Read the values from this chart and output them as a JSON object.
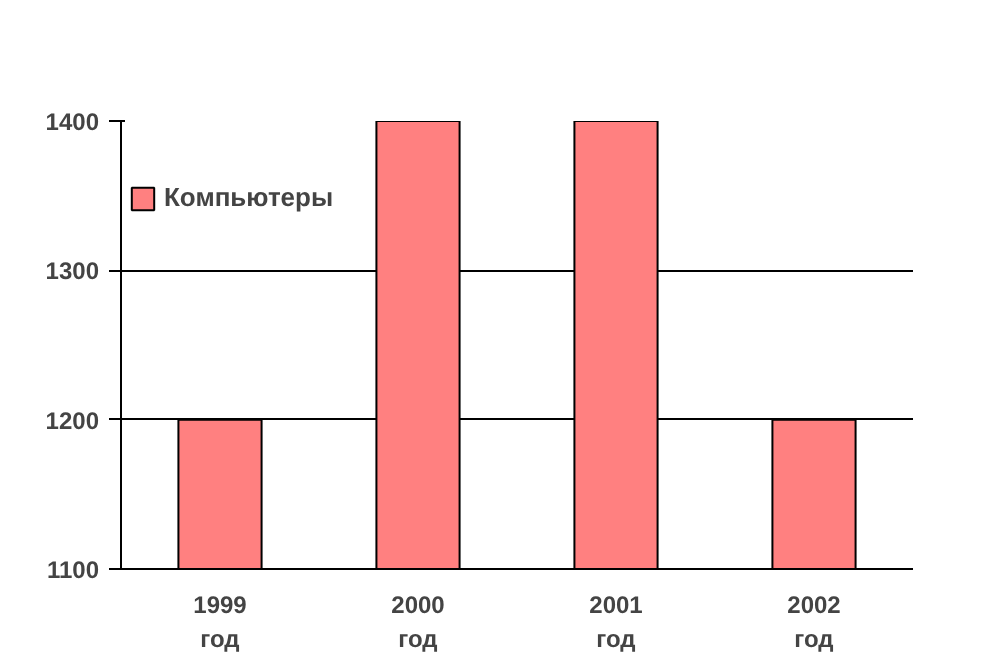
{
  "chart_data": {
    "type": "bar",
    "categories": [
      "1999\nгод",
      "2000\nгод",
      "2001\nгод",
      "2002\nгод"
    ],
    "series": [
      {
        "name": "Компьютеры",
        "color": "#ff8080",
        "values": [
          1200,
          1400,
          1400,
          1200
        ]
      }
    ],
    "ylim": [
      1100,
      1400
    ],
    "yticks": [
      1100,
      1200,
      1300,
      1400
    ],
    "grid": "y",
    "legend": "top left"
  }
}
